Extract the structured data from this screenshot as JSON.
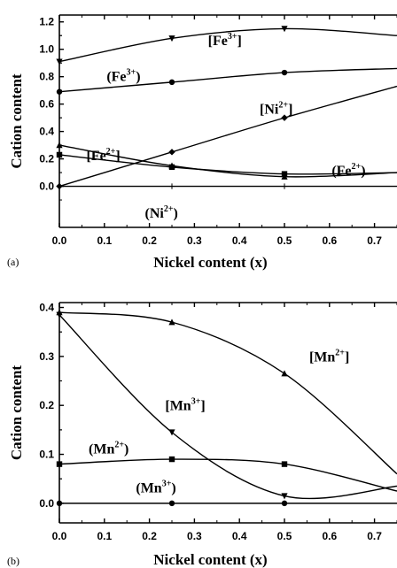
{
  "chart_data": [
    {
      "type": "line",
      "panel_label": "(a)",
      "xlabel": "Nickel content (x)",
      "ylabel": "Cation content",
      "xlim": [
        0.0,
        0.75
      ],
      "ylim": [
        -0.3,
        1.25
      ],
      "xticks": [
        "0.0",
        "0.1",
        "0.2",
        "0.3",
        "0.4",
        "0.5",
        "0.6",
        "0.7"
      ],
      "yticks": [
        "0.0",
        "0.2",
        "0.4",
        "0.6",
        "0.8",
        "1.0",
        "1.2"
      ],
      "grid": false,
      "series": [
        {
          "name": "[Fe3+]",
          "marker": "triangle-down",
          "x": [
            0,
            0.25,
            0.5,
            0.75
          ],
          "y": [
            0.91,
            1.08,
            1.15,
            1.1
          ]
        },
        {
          "name": "(Fe3+)",
          "marker": "circle",
          "x": [
            0,
            0.25,
            0.5,
            0.75
          ],
          "y": [
            0.69,
            0.76,
            0.83,
            0.86
          ]
        },
        {
          "name": "[Ni2+]",
          "marker": "diamond",
          "x": [
            0,
            0.25,
            0.5,
            0.75
          ],
          "y": [
            0.0,
            0.25,
            0.5,
            0.73
          ]
        },
        {
          "name": "[Fe2+]",
          "marker": "triangle-up",
          "x": [
            0,
            0.25,
            0.5,
            0.75
          ],
          "y": [
            0.3,
            0.15,
            0.07,
            0.1
          ]
        },
        {
          "name": "(Fe2+)",
          "marker": "square",
          "x": [
            0,
            0.25,
            0.5,
            0.75
          ],
          "y": [
            0.23,
            0.14,
            0.09,
            0.1
          ]
        },
        {
          "name": "(Ni2+)",
          "marker": "plus",
          "x": [
            0,
            0.25,
            0.5,
            0.75
          ],
          "y": [
            0.0,
            0.0,
            0.0,
            0.0
          ]
        }
      ],
      "annotations": [
        {
          "base": "[Fe",
          "sup": "3+",
          "tail": "]",
          "x": 0.33,
          "y": 1.03
        },
        {
          "base": "(Fe",
          "sup": "3+",
          "tail": ")",
          "x": 0.105,
          "y": 0.77
        },
        {
          "base": "[Ni",
          "sup": "2+",
          "tail": "]",
          "x": 0.445,
          "y": 0.53
        },
        {
          "base": "[Fe",
          "sup": "2+",
          "tail": "]",
          "x": 0.06,
          "y": 0.19
        },
        {
          "base": "(Fe",
          "sup": "2+",
          "tail": ")",
          "x": 0.605,
          "y": 0.08
        },
        {
          "base": "(Ni",
          "sup": "2+",
          "tail": ")",
          "x": 0.19,
          "y": -0.23
        }
      ]
    },
    {
      "type": "line",
      "panel_label": "(b)",
      "xlabel": "Nickel content (x)",
      "ylabel": "Cation content",
      "xlim": [
        0.0,
        0.75
      ],
      "ylim": [
        -0.04,
        0.41
      ],
      "xticks": [
        "0.0",
        "0.1",
        "0.2",
        "0.3",
        "0.4",
        "0.5",
        "0.6",
        "0.7"
      ],
      "yticks": [
        "0.0",
        "0.1",
        "0.2",
        "0.3",
        "0.4"
      ],
      "grid": false,
      "series": [
        {
          "name": "[Mn2+]",
          "marker": "triangle-up",
          "x": [
            0,
            0.25,
            0.5,
            0.75
          ],
          "y": [
            0.39,
            0.37,
            0.265,
            0.06
          ]
        },
        {
          "name": "[Mn3+]",
          "marker": "triangle-down",
          "x": [
            0,
            0.25,
            0.5,
            0.75
          ],
          "y": [
            0.385,
            0.145,
            0.015,
            0.035
          ]
        },
        {
          "name": "(Mn2+)",
          "marker": "square",
          "x": [
            0,
            0.25,
            0.5,
            0.75
          ],
          "y": [
            0.08,
            0.09,
            0.08,
            0.025
          ]
        },
        {
          "name": "(Mn3+)",
          "marker": "circle",
          "x": [
            0,
            0.25,
            0.5,
            0.75
          ],
          "y": [
            0.0,
            0.0,
            0.0,
            0.0
          ]
        }
      ],
      "annotations": [
        {
          "base": "[Mn",
          "sup": "2+",
          "tail": "]",
          "x": 0.555,
          "y": 0.29
        },
        {
          "base": "[Mn",
          "sup": "3+",
          "tail": "]",
          "x": 0.235,
          "y": 0.19
        },
        {
          "base": "(Mn",
          "sup": "2+",
          "tail": ")",
          "x": 0.065,
          "y": 0.102
        },
        {
          "base": "(Mn",
          "sup": "3+",
          "tail": ")",
          "x": 0.17,
          "y": 0.022
        }
      ]
    }
  ]
}
